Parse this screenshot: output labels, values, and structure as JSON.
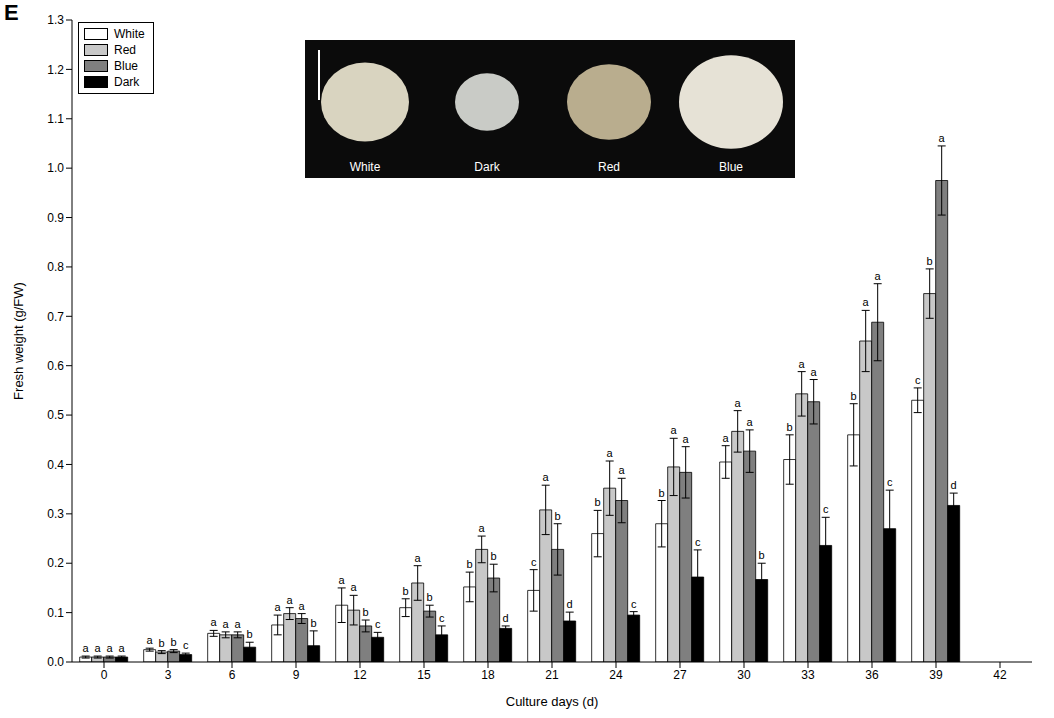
{
  "chart_data": {
    "type": "bar",
    "panel": "E",
    "x_label": "Culture days (d)",
    "y_label": "Fresh weight (g/FW)",
    "categories": [
      "0",
      "3",
      "6",
      "9",
      "12",
      "15",
      "18",
      "21",
      "24",
      "27",
      "30",
      "33",
      "36",
      "39",
      "42"
    ],
    "series": [
      {
        "name": "White",
        "color": "#ffffff",
        "values": [
          0.01,
          0.025,
          0.058,
          0.075,
          0.115,
          0.11,
          0.152,
          0.145,
          0.26,
          0.28,
          0.405,
          0.41,
          0.46,
          0.53,
          null
        ],
        "errors": [
          0.002,
          0.003,
          0.006,
          0.02,
          0.035,
          0.018,
          0.03,
          0.042,
          0.047,
          0.047,
          0.033,
          0.05,
          0.063,
          0.025,
          null
        ],
        "letters": [
          "a",
          "a",
          "a",
          "a",
          "a",
          "b",
          "b",
          "c",
          "b",
          "b",
          "a",
          "b",
          "b",
          "c",
          null
        ]
      },
      {
        "name": "Red",
        "color": "#c8c8c8",
        "values": [
          0.01,
          0.02,
          0.055,
          0.098,
          0.105,
          0.16,
          0.228,
          0.308,
          0.352,
          0.395,
          0.467,
          0.543,
          0.65,
          0.746,
          null
        ],
        "errors": [
          0.002,
          0.003,
          0.006,
          0.012,
          0.03,
          0.035,
          0.027,
          0.05,
          0.055,
          0.058,
          0.042,
          0.045,
          0.062,
          0.05,
          null
        ],
        "letters": [
          "a",
          "b",
          "a",
          "a",
          "a",
          "a",
          "a",
          "a",
          "a",
          "a",
          "a",
          "a",
          "a",
          "b",
          null
        ]
      },
      {
        "name": "Blue",
        "color": "#7f7f7f",
        "values": [
          0.01,
          0.022,
          0.055,
          0.088,
          0.073,
          0.103,
          0.17,
          0.228,
          0.327,
          0.384,
          0.427,
          0.527,
          0.688,
          0.975,
          null
        ],
        "errors": [
          0.002,
          0.003,
          0.006,
          0.01,
          0.012,
          0.012,
          0.028,
          0.052,
          0.045,
          0.052,
          0.043,
          0.045,
          0.078,
          0.07,
          null
        ],
        "letters": [
          "a",
          "b",
          "a",
          "a",
          "b",
          "b",
          "b",
          "b",
          "a",
          "a",
          "a",
          "a",
          "a",
          "a",
          null
        ]
      },
      {
        "name": "Dark",
        "color": "#000000",
        "values": [
          0.01,
          0.015,
          0.03,
          0.033,
          0.05,
          0.055,
          0.068,
          0.083,
          0.095,
          0.172,
          0.167,
          0.236,
          0.27,
          0.317,
          null
        ],
        "errors": [
          0.002,
          0.003,
          0.01,
          0.03,
          0.01,
          0.018,
          0.005,
          0.018,
          0.007,
          0.055,
          0.033,
          0.057,
          0.078,
          0.025,
          null
        ],
        "letters": [
          "a",
          "c",
          "b",
          "b",
          "c",
          "c",
          "d",
          "d",
          "c",
          "c",
          "b",
          "c",
          "c",
          "d",
          null
        ]
      }
    ],
    "ylim": [
      0,
      1.3
    ],
    "yticks": [
      {
        "value": 0,
        "label": "0.0"
      },
      {
        "value": 0.1,
        "label": "0.1"
      },
      {
        "value": 0.2,
        "label": "0.2"
      },
      {
        "value": 0.3,
        "label": "0.3"
      },
      {
        "value": 0.4,
        "label": "0.4"
      },
      {
        "value": 0.5,
        "label": "0.5"
      },
      {
        "value": 0.6,
        "label": "0.6"
      },
      {
        "value": 0.7,
        "label": "0.7"
      },
      {
        "value": 0.8,
        "label": "0.8"
      },
      {
        "value": 0.9,
        "label": "0.9"
      },
      {
        "value": 1.0,
        "label": "1.0"
      },
      {
        "value": 1.1,
        "label": "1.1"
      },
      {
        "value": 1.2,
        "label": "1.2"
      },
      {
        "value": 1.3,
        "label": "1.3"
      }
    ],
    "grid": false,
    "legend": "top-left",
    "inset_labels": [
      "White",
      "Dark",
      "Red",
      "Blue"
    ]
  }
}
